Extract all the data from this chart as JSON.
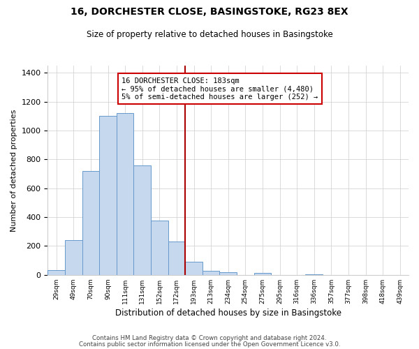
{
  "title": "16, DORCHESTER CLOSE, BASINGSTOKE, RG23 8EX",
  "subtitle": "Size of property relative to detached houses in Basingstoke",
  "xlabel": "Distribution of detached houses by size in Basingstoke",
  "ylabel": "Number of detached properties",
  "bin_labels": [
    "29sqm",
    "49sqm",
    "70sqm",
    "90sqm",
    "111sqm",
    "131sqm",
    "152sqm",
    "172sqm",
    "193sqm",
    "213sqm",
    "234sqm",
    "254sqm",
    "275sqm",
    "295sqm",
    "316sqm",
    "336sqm",
    "357sqm",
    "377sqm",
    "398sqm",
    "418sqm",
    "439sqm"
  ],
  "bar_values": [
    35,
    240,
    720,
    1100,
    1120,
    760,
    375,
    230,
    90,
    30,
    20,
    0,
    15,
    0,
    0,
    5,
    0,
    0,
    0,
    0,
    0
  ],
  "bar_color": "#c5d8ed",
  "bar_edge_color": "#6699cc",
  "vline_x_index": 8,
  "vline_color": "#aa0000",
  "annotation_line1": "16 DORCHESTER CLOSE: 183sqm",
  "annotation_line2": "← 95% of detached houses are smaller (4,480)",
  "annotation_line3": "5% of semi-detached houses are larger (252) →",
  "annotation_box_color": "#ffffff",
  "annotation_box_edge": "#cc0000",
  "ylim": [
    0,
    1450
  ],
  "yticks": [
    0,
    200,
    400,
    600,
    800,
    1000,
    1200,
    1400
  ],
  "footer_line1": "Contains HM Land Registry data © Crown copyright and database right 2024.",
  "footer_line2": "Contains public sector information licensed under the Open Government Licence v3.0.",
  "bg_color": "#ffffff",
  "grid_color": "#cccccc"
}
